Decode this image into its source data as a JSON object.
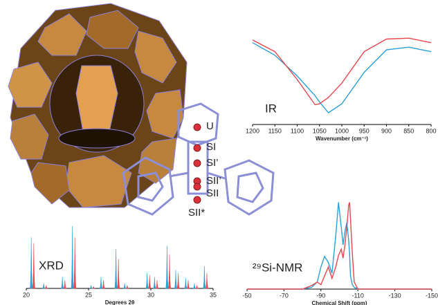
{
  "chart_data": [
    {
      "type": "line",
      "annotation": "IR",
      "x_label": "Wavenumber (cm⁻¹)",
      "x": [
        1200,
        1150,
        1100,
        1060,
        1050,
        1030,
        1000,
        950,
        900,
        850,
        800
      ],
      "xlim": [
        1200,
        800
      ],
      "xticks": [
        1200,
        1150,
        1100,
        1050,
        1000,
        950,
        900,
        850,
        800
      ],
      "ylim": [
        0,
        100
      ],
      "series": [
        {
          "color": "#2a9fd8",
          "values": [
            91,
            77,
            54,
            32,
            25,
            13,
            23,
            58,
            83,
            86,
            81
          ]
        },
        {
          "color": "#e8464e",
          "values": [
            94,
            81,
            50,
            22,
            23,
            30,
            46,
            81,
            95,
            96,
            91
          ]
        }
      ]
    },
    {
      "type": "bar",
      "annotation": "XRD",
      "x_label": "Degrees 2θ",
      "xlim": [
        20,
        35
      ],
      "xticks": [
        20,
        25,
        30,
        35
      ],
      "ylim": [
        0,
        100
      ],
      "series": [
        {
          "color": "#2a9fd8",
          "x": [
            20.4,
            21.4,
            22.9,
            23.7,
            25.2,
            26.0,
            27.2,
            27.9,
            29.7,
            30.3,
            31.3,
            32.0,
            32.8,
            33.5,
            34.3
          ],
          "values": [
            80,
            8,
            18,
            98,
            5,
            18,
            62,
            8,
            24,
            18,
            67,
            29,
            16,
            8,
            35
          ]
        },
        {
          "color": "#e8464e",
          "x": [
            20.6,
            21.6,
            23.1,
            23.9,
            25.4,
            26.2,
            27.4,
            28.1,
            29.9,
            30.5,
            31.5,
            32.2,
            33.0,
            33.7,
            34.5
          ],
          "values": [
            71,
            5,
            13,
            80,
            3,
            13,
            46,
            5,
            21,
            13,
            53,
            24,
            13,
            5,
            24
          ]
        }
      ]
    },
    {
      "type": "line",
      "annotation": "²⁹Si-NMR",
      "x_label": "Chemical Shift (ppm)",
      "x": [
        -50,
        -80,
        -85,
        -88,
        -90,
        -92,
        -94,
        -96,
        -98,
        -99.5,
        -101,
        -102,
        -103,
        -104,
        -105,
        -105.5,
        -106,
        -107,
        -108,
        -110,
        -150
      ],
      "xlim": [
        -50,
        -150
      ],
      "xticks": [
        -50,
        -70,
        -90,
        -110,
        -130,
        -150
      ],
      "ylim": [
        0,
        100
      ],
      "series": [
        {
          "color": "#2a9fd8",
          "values": [
            0,
            0,
            2,
            8,
            25,
            37,
            30,
            18,
            60,
            98,
            70,
            50,
            65,
            75,
            55,
            40,
            15,
            5,
            2,
            0,
            0
          ]
        },
        {
          "color": "#e8464e",
          "values": [
            0,
            0,
            4,
            8,
            5,
            15,
            25,
            12,
            25,
            38,
            45,
            35,
            50,
            70,
            95,
            98,
            80,
            40,
            8,
            0,
            0
          ]
        }
      ]
    }
  ],
  "structure_labels": [
    "U",
    "SI",
    "SI’",
    "SII’",
    "SII",
    "SII*"
  ]
}
